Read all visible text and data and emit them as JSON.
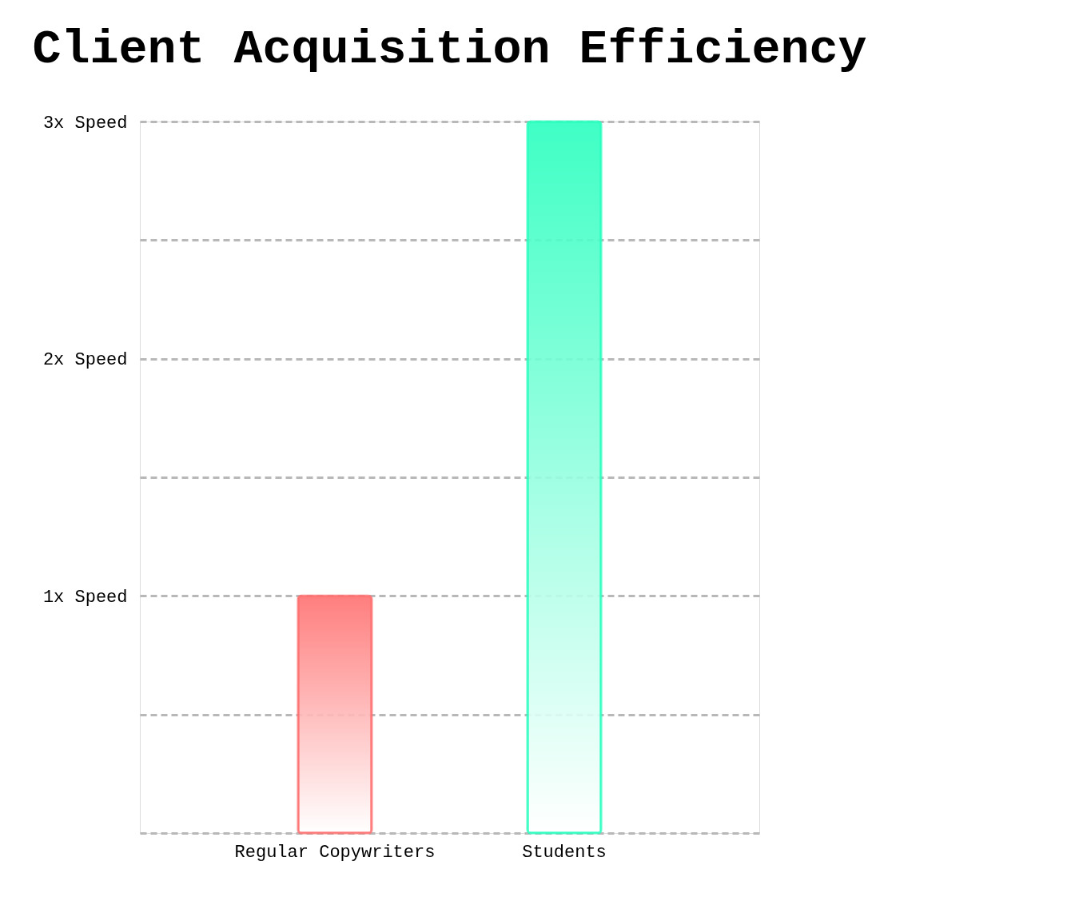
{
  "chart_data": {
    "type": "bar",
    "title": "Client Acquisition Efficiency",
    "categories": [
      "Regular Copywriters",
      "Students"
    ],
    "values": [
      1,
      3
    ],
    "colors": [
      "#ff7070",
      "#2affbf"
    ],
    "ylim": [
      0,
      3
    ],
    "yticks": [
      {
        "value": 0,
        "label": null
      },
      {
        "value": 0.5,
        "label": null
      },
      {
        "value": 1,
        "label": "1x Speed"
      },
      {
        "value": 1.5,
        "label": null
      },
      {
        "value": 2,
        "label": "2x Speed"
      },
      {
        "value": 2.5,
        "label": null
      },
      {
        "value": 3,
        "label": "3x Speed"
      }
    ],
    "grid": "y"
  }
}
